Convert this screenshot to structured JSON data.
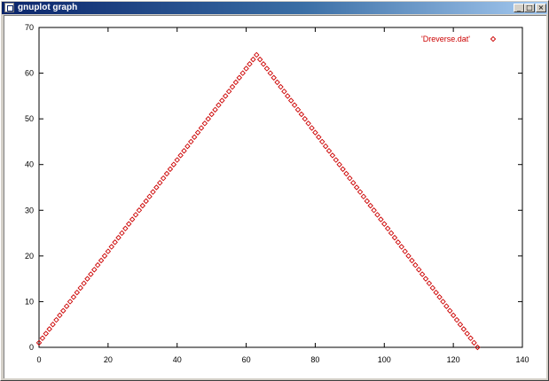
{
  "window": {
    "title": "gnuplot graph",
    "buttons": {
      "minimize": "_",
      "maximize": "□",
      "close": "×"
    }
  },
  "chart_data": {
    "type": "scatter",
    "legend": {
      "label": "'Dreverse.dat'",
      "marker": "diamond",
      "placement": "top-right"
    },
    "xlim": [
      0,
      140
    ],
    "ylim": [
      0,
      70
    ],
    "xticks": [
      0,
      20,
      40,
      60,
      80,
      100,
      120,
      140
    ],
    "yticks": [
      0,
      10,
      20,
      30,
      40,
      50,
      60,
      70
    ],
    "grid": false,
    "color": "#cc0000",
    "series": [
      {
        "name": "'Dreverse.dat'",
        "x": [
          0,
          1,
          2,
          3,
          4,
          5,
          6,
          7,
          8,
          9,
          10,
          11,
          12,
          13,
          14,
          15,
          16,
          17,
          18,
          19,
          20,
          21,
          22,
          23,
          24,
          25,
          26,
          27,
          28,
          29,
          30,
          31,
          32,
          33,
          34,
          35,
          36,
          37,
          38,
          39,
          40,
          41,
          42,
          43,
          44,
          45,
          46,
          47,
          48,
          49,
          50,
          51,
          52,
          53,
          54,
          55,
          56,
          57,
          58,
          59,
          60,
          61,
          62,
          63,
          64,
          65,
          66,
          67,
          68,
          69,
          70,
          71,
          72,
          73,
          74,
          75,
          76,
          77,
          78,
          79,
          80,
          81,
          82,
          83,
          84,
          85,
          86,
          87,
          88,
          89,
          90,
          91,
          92,
          93,
          94,
          95,
          96,
          97,
          98,
          99,
          100,
          101,
          102,
          103,
          104,
          105,
          106,
          107,
          108,
          109,
          110,
          111,
          112,
          113,
          114,
          115,
          116,
          117,
          118,
          119,
          120,
          121,
          122,
          123,
          124,
          125,
          126,
          127
        ],
        "y": [
          1,
          2,
          3,
          4,
          5,
          6,
          7,
          8,
          9,
          10,
          11,
          12,
          13,
          14,
          15,
          16,
          17,
          18,
          19,
          20,
          21,
          22,
          23,
          24,
          25,
          26,
          27,
          28,
          29,
          30,
          31,
          32,
          33,
          34,
          35,
          36,
          37,
          38,
          39,
          40,
          41,
          42,
          43,
          44,
          45,
          46,
          47,
          48,
          49,
          50,
          51,
          52,
          53,
          54,
          55,
          56,
          57,
          58,
          59,
          60,
          61,
          62,
          63,
          64,
          63,
          62,
          61,
          60,
          59,
          58,
          57,
          56,
          55,
          54,
          53,
          52,
          51,
          50,
          49,
          48,
          47,
          46,
          45,
          44,
          43,
          42,
          41,
          40,
          39,
          38,
          37,
          36,
          35,
          34,
          33,
          32,
          31,
          30,
          29,
          28,
          27,
          26,
          25,
          24,
          23,
          22,
          21,
          20,
          19,
          18,
          17,
          16,
          15,
          14,
          13,
          12,
          11,
          10,
          9,
          8,
          7,
          6,
          5,
          4,
          3,
          2,
          1,
          0
        ]
      }
    ]
  }
}
